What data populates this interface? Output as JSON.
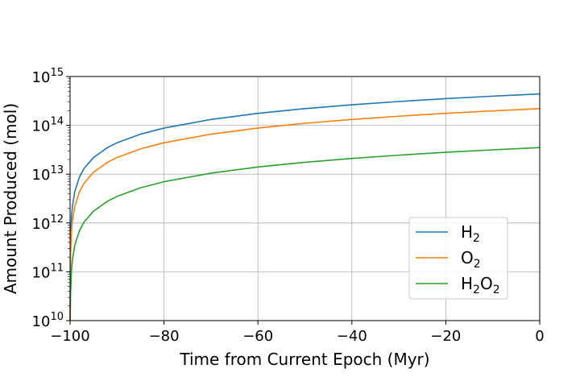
{
  "chart_data": {
    "type": "line",
    "title": "",
    "xlabel": "Time from Current Epoch (Myr)",
    "ylabel": "Amount Produced (mol)",
    "xlim": [
      -100,
      0
    ],
    "ylim": [
      10000000000.0,
      1000000000000000.0
    ],
    "yscale": "log",
    "grid": true,
    "legend_position": "lower-right",
    "x_ticks": [
      {
        "value": -100,
        "label": "−100"
      },
      {
        "value": -80,
        "label": "−80"
      },
      {
        "value": -60,
        "label": "−60"
      },
      {
        "value": -40,
        "label": "−40"
      },
      {
        "value": -20,
        "label": "−20"
      },
      {
        "value": 0,
        "label": "0"
      }
    ],
    "y_ticks": [
      {
        "value": 10000000000.0,
        "base": "10",
        "exp": "10"
      },
      {
        "value": 100000000000.0,
        "base": "10",
        "exp": "11"
      },
      {
        "value": 1000000000000.0,
        "base": "10",
        "exp": "12"
      },
      {
        "value": 10000000000000.0,
        "base": "10",
        "exp": "13"
      },
      {
        "value": 100000000000000.0,
        "base": "10",
        "exp": "14"
      },
      {
        "value": 1000000000000000.0,
        "base": "10",
        "exp": "15"
      }
    ],
    "series": [
      {
        "name": "H₂",
        "legend": {
          "main": "H",
          "parts": [
            {
              "t": "2",
              "sub": true
            }
          ]
        },
        "color": "#1f77b4",
        "x": [
          -99.9,
          -99.7,
          -99.5,
          -99,
          -98,
          -97,
          -95,
          -92,
          -90,
          -85,
          -80,
          -70,
          -60,
          -50,
          -40,
          -30,
          -20,
          -10,
          0
        ],
        "y": [
          440000000000.0,
          1320000000000.0,
          2200000000000.0,
          4400000000000.0,
          8800000000000.0,
          13200000000000.0,
          22000000000000.0,
          35200000000000.0,
          44000000000000.0,
          66000000000000.0,
          88000000000000.0,
          132000000000000.0,
          176000000000000.0,
          220000000000000.0,
          264000000000000.0,
          308000000000000.0,
          352000000000000.0,
          396000000000000.0,
          440000000000000.0
        ]
      },
      {
        "name": "O₂",
        "legend": {
          "main": "O",
          "parts": [
            {
              "t": "2",
              "sub": true
            }
          ]
        },
        "color": "#ff7f0e",
        "x": [
          -99.9,
          -99.7,
          -99.5,
          -99,
          -98,
          -97,
          -95,
          -92,
          -90,
          -85,
          -80,
          -70,
          -60,
          -50,
          -40,
          -30,
          -20,
          -10,
          0
        ],
        "y": [
          220000000000.0,
          660000000000.0,
          1100000000000.0,
          2200000000000.0,
          4400000000000.0,
          6600000000000.0,
          11000000000000.0,
          17600000000000.0,
          22000000000000.0,
          33000000000000.0,
          44000000000000.0,
          66000000000000.0,
          88000000000000.0,
          110000000000000.0,
          132000000000000.0,
          154000000000000.0,
          176000000000000.0,
          198000000000000.0,
          220000000000000.0
        ]
      },
      {
        "name": "H₂O₂",
        "legend": {
          "main": "H",
          "parts": [
            {
              "t": "2",
              "sub": true
            },
            {
              "t": "O",
              "sub": false
            },
            {
              "t": "2",
              "sub": true
            }
          ]
        },
        "color": "#2ca02c",
        "x": [
          -99.97,
          -99.9,
          -99.7,
          -99.5,
          -99,
          -98,
          -97,
          -95,
          -92,
          -90,
          -85,
          -80,
          -70,
          -60,
          -50,
          -40,
          -30,
          -20,
          -10,
          0
        ],
        "y": [
          10000000000.0,
          35000000000.0,
          105000000000.0,
          175000000000.0,
          350000000000.0,
          700000000000.0,
          1050000000000.0,
          1750000000000.0,
          2800000000000.0,
          3500000000000.0,
          5250000000000.0,
          7000000000000.0,
          10500000000000.0,
          14000000000000.0,
          17500000000000.0,
          21000000000000.0,
          24500000000000.0,
          28000000000000.0,
          31500000000000.0,
          35000000000000.0
        ]
      }
    ]
  }
}
